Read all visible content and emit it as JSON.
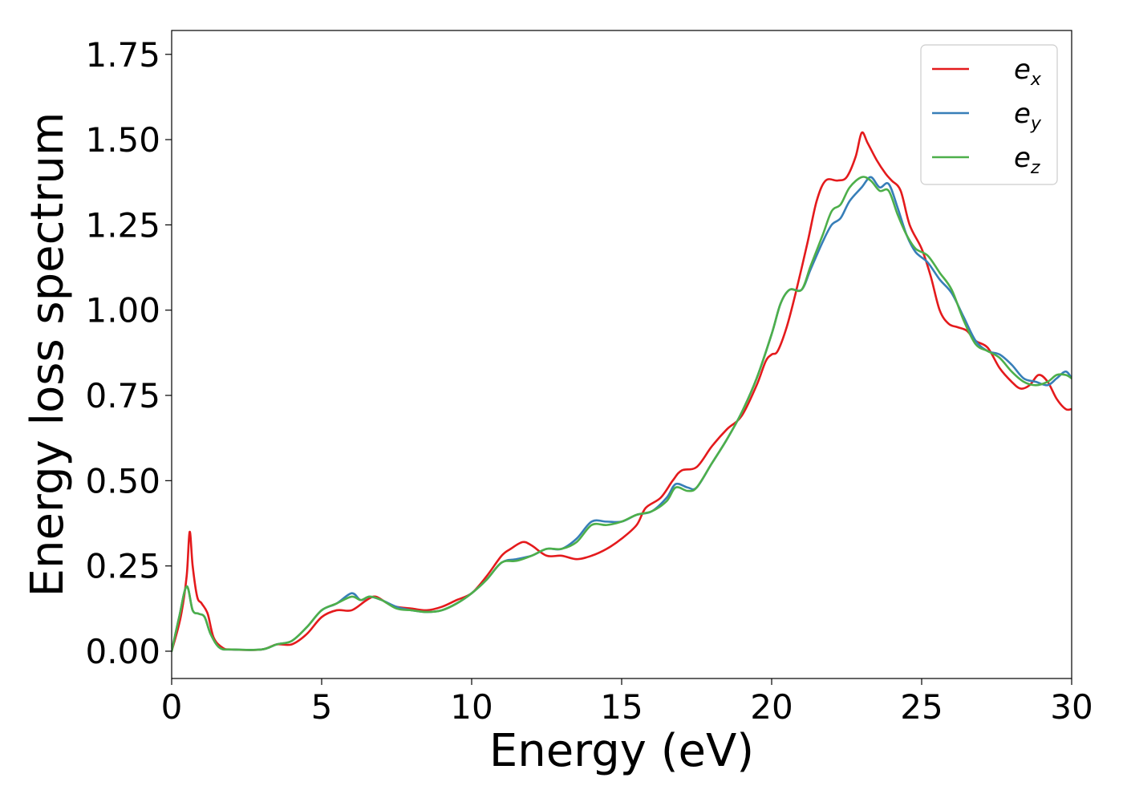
{
  "chart_data": {
    "type": "line",
    "xlabel": "Energy (eV)",
    "ylabel": "Energy loss spectrum",
    "xlim": [
      0,
      30
    ],
    "ylim": [
      -0.08,
      1.82
    ],
    "xticks": [
      0,
      5,
      10,
      15,
      20,
      25,
      30
    ],
    "xtick_labels": [
      "0",
      "5",
      "10",
      "15",
      "20",
      "25",
      "30"
    ],
    "yticks": [
      0.0,
      0.25,
      0.5,
      0.75,
      1.0,
      1.25,
      1.5,
      1.75
    ],
    "ytick_labels": [
      "0.00",
      "0.25",
      "0.50",
      "0.75",
      "1.00",
      "1.25",
      "1.50",
      "1.75"
    ],
    "grid": false,
    "legend_position": "top-right",
    "series": [
      {
        "name": "e",
        "subscript": "x",
        "color": "#e41a1c",
        "x": [
          0,
          0.3,
          0.5,
          0.6,
          0.7,
          0.85,
          1.0,
          1.2,
          1.4,
          1.7,
          2.0,
          3.0,
          3.5,
          4.0,
          4.5,
          5.0,
          5.5,
          6.0,
          6.5,
          6.8,
          7.2,
          7.5,
          8.0,
          8.5,
          9.0,
          9.5,
          10.0,
          10.5,
          11.0,
          11.3,
          11.7,
          12.0,
          12.5,
          13.0,
          13.5,
          14.0,
          14.5,
          15.0,
          15.5,
          15.8,
          16.3,
          16.7,
          17.0,
          17.5,
          18.0,
          18.5,
          19.0,
          19.5,
          19.8,
          20.0,
          20.2,
          20.5,
          20.8,
          21.2,
          21.5,
          21.8,
          22.2,
          22.5,
          22.8,
          23.0,
          23.2,
          23.5,
          23.8,
          24.0,
          24.3,
          24.6,
          25.0,
          25.3,
          25.6,
          25.9,
          26.2,
          26.5,
          26.8,
          27.2,
          27.6,
          28.0,
          28.3,
          28.6,
          28.9,
          29.2,
          29.5,
          29.8,
          30.0
        ],
        "y": [
          0.0,
          0.1,
          0.22,
          0.35,
          0.25,
          0.16,
          0.14,
          0.11,
          0.04,
          0.01,
          0.005,
          0.005,
          0.02,
          0.02,
          0.05,
          0.1,
          0.12,
          0.12,
          0.15,
          0.16,
          0.14,
          0.13,
          0.125,
          0.12,
          0.13,
          0.15,
          0.17,
          0.22,
          0.28,
          0.3,
          0.32,
          0.31,
          0.28,
          0.28,
          0.27,
          0.28,
          0.3,
          0.33,
          0.37,
          0.42,
          0.45,
          0.5,
          0.53,
          0.54,
          0.6,
          0.65,
          0.69,
          0.78,
          0.85,
          0.87,
          0.88,
          0.95,
          1.05,
          1.2,
          1.32,
          1.38,
          1.38,
          1.39,
          1.45,
          1.52,
          1.49,
          1.44,
          1.4,
          1.38,
          1.35,
          1.25,
          1.18,
          1.1,
          1.0,
          0.96,
          0.95,
          0.94,
          0.91,
          0.89,
          0.83,
          0.79,
          0.77,
          0.78,
          0.81,
          0.79,
          0.74,
          0.71,
          0.71
        ]
      },
      {
        "name": "e",
        "subscript": "y",
        "color": "#377eb8",
        "x": [
          0,
          0.25,
          0.5,
          0.7,
          0.9,
          1.1,
          1.3,
          1.6,
          2.0,
          3.0,
          3.5,
          4.0,
          4.5,
          5.0,
          5.5,
          6.0,
          6.3,
          6.6,
          7.0,
          7.5,
          8.0,
          8.5,
          9.0,
          9.5,
          10.0,
          10.5,
          11.0,
          11.5,
          12.0,
          12.5,
          13.0,
          13.5,
          14.0,
          14.5,
          15.0,
          15.5,
          16.0,
          16.5,
          16.8,
          17.2,
          17.5,
          18.0,
          18.5,
          19.0,
          19.5,
          20.0,
          20.3,
          20.6,
          21.0,
          21.3,
          21.7,
          22.0,
          22.3,
          22.6,
          23.0,
          23.3,
          23.6,
          23.9,
          24.2,
          24.5,
          24.8,
          25.2,
          25.6,
          26.0,
          26.4,
          26.8,
          27.2,
          27.6,
          28.0,
          28.4,
          28.8,
          29.2,
          29.5,
          29.8,
          30.0
        ],
        "y": [
          0.0,
          0.1,
          0.19,
          0.12,
          0.11,
          0.1,
          0.05,
          0.01,
          0.005,
          0.005,
          0.02,
          0.03,
          0.07,
          0.12,
          0.14,
          0.17,
          0.15,
          0.16,
          0.15,
          0.13,
          0.12,
          0.115,
          0.12,
          0.14,
          0.17,
          0.21,
          0.26,
          0.27,
          0.28,
          0.3,
          0.3,
          0.33,
          0.38,
          0.38,
          0.38,
          0.4,
          0.41,
          0.45,
          0.49,
          0.48,
          0.48,
          0.55,
          0.62,
          0.7,
          0.8,
          0.93,
          1.02,
          1.06,
          1.06,
          1.12,
          1.2,
          1.25,
          1.27,
          1.32,
          1.36,
          1.39,
          1.36,
          1.37,
          1.3,
          1.22,
          1.17,
          1.14,
          1.09,
          1.05,
          0.98,
          0.91,
          0.88,
          0.87,
          0.84,
          0.8,
          0.79,
          0.78,
          0.8,
          0.82,
          0.8
        ]
      },
      {
        "name": "e",
        "subscript": "z",
        "color": "#4daf4a",
        "x": [
          0,
          0.25,
          0.5,
          0.7,
          0.9,
          1.1,
          1.3,
          1.6,
          2.0,
          3.0,
          3.5,
          4.0,
          4.5,
          5.0,
          5.5,
          6.0,
          6.3,
          6.6,
          7.0,
          7.5,
          8.0,
          8.5,
          9.0,
          9.5,
          10.0,
          10.5,
          11.0,
          11.5,
          12.0,
          12.5,
          13.0,
          13.5,
          14.0,
          14.5,
          15.0,
          15.5,
          16.0,
          16.5,
          16.8,
          17.2,
          17.5,
          18.0,
          18.5,
          19.0,
          19.5,
          20.0,
          20.3,
          20.6,
          21.0,
          21.3,
          21.7,
          22.0,
          22.3,
          22.6,
          23.0,
          23.3,
          23.6,
          23.9,
          24.2,
          24.5,
          24.8,
          25.2,
          25.6,
          26.0,
          26.4,
          26.8,
          27.2,
          27.6,
          28.0,
          28.4,
          28.8,
          29.2,
          29.5,
          29.8,
          30.0
        ],
        "y": [
          0.0,
          0.1,
          0.19,
          0.12,
          0.11,
          0.1,
          0.05,
          0.01,
          0.005,
          0.005,
          0.02,
          0.03,
          0.07,
          0.12,
          0.14,
          0.16,
          0.15,
          0.16,
          0.15,
          0.125,
          0.12,
          0.115,
          0.12,
          0.14,
          0.17,
          0.21,
          0.26,
          0.265,
          0.28,
          0.3,
          0.3,
          0.32,
          0.37,
          0.37,
          0.38,
          0.4,
          0.41,
          0.44,
          0.48,
          0.47,
          0.48,
          0.55,
          0.62,
          0.7,
          0.8,
          0.93,
          1.02,
          1.06,
          1.06,
          1.13,
          1.22,
          1.29,
          1.31,
          1.36,
          1.39,
          1.38,
          1.35,
          1.35,
          1.28,
          1.22,
          1.18,
          1.16,
          1.11,
          1.06,
          0.97,
          0.9,
          0.88,
          0.86,
          0.82,
          0.79,
          0.78,
          0.79,
          0.81,
          0.81,
          0.8
        ]
      }
    ]
  }
}
